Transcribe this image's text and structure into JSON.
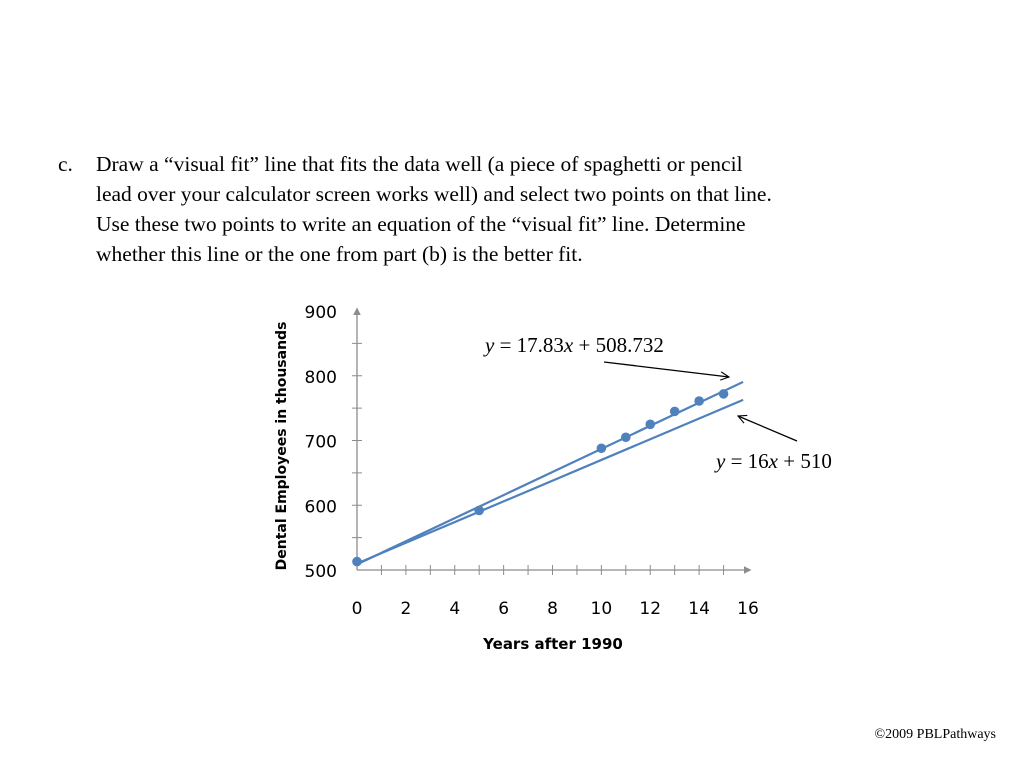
{
  "problem": {
    "marker": "c.",
    "lines": [
      "Draw a “visual fit” line that fits the data well (a piece of spaghetti or pencil",
      "lead over your calculator screen works well) and select two points on that line.",
      "Use these two points to write an equation of the “visual fit” line. Determine",
      "whether this line or the one from part (b) is the better fit."
    ]
  },
  "chart_data": {
    "type": "scatter",
    "xlabel": "Years after 1990",
    "ylabel": "Dental Employees in thousands",
    "xlim": [
      0,
      16
    ],
    "ylim": [
      500,
      900
    ],
    "xticks": [
      0,
      2,
      4,
      6,
      8,
      10,
      12,
      14,
      16
    ],
    "yticks": [
      500,
      600,
      700,
      800,
      900
    ],
    "grid": false,
    "points": [
      {
        "x": 0,
        "y": 513
      },
      {
        "x": 5,
        "y": 592
      },
      {
        "x": 10,
        "y": 688
      },
      {
        "x": 11,
        "y": 705
      },
      {
        "x": 12,
        "y": 725
      },
      {
        "x": 13,
        "y": 745
      },
      {
        "x": 14,
        "y": 761
      },
      {
        "x": 15,
        "y": 772
      }
    ],
    "lines": [
      {
        "slope": 17.83,
        "intercept": 508.732,
        "x_range": [
          0,
          16
        ]
      },
      {
        "slope": 16,
        "intercept": 510,
        "x_range": [
          0,
          16
        ]
      }
    ],
    "annotations": [
      {
        "text": "y = 17.83x + 508.732",
        "points_to": "upper line"
      },
      {
        "text": "y = 16x + 510",
        "points_to": "lower line"
      }
    ],
    "colors": {
      "points": "#4f81bd",
      "lines": "#4f81bd",
      "axis": "#8c8c8c"
    }
  },
  "footer": {
    "copyright": "©2009 PBLPathways"
  }
}
